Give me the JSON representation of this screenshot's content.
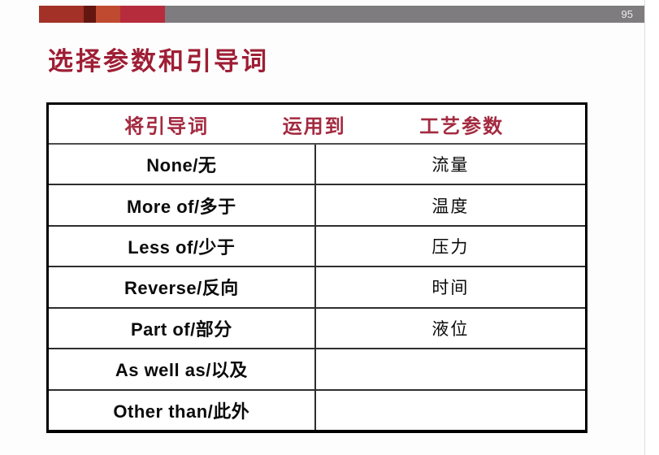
{
  "page": {
    "number": "95"
  },
  "title": "选择参数和引导词",
  "table": {
    "header": {
      "col1": "将引导词",
      "col2": "运用到",
      "col3": "工艺参数"
    },
    "rows": [
      {
        "guideword": "None/无",
        "parameter": "流量"
      },
      {
        "guideword": "More of/多于",
        "parameter": "温度"
      },
      {
        "guideword": "Less of/少于",
        "parameter": "压力"
      },
      {
        "guideword": "Reverse/反向",
        "parameter": "时间"
      },
      {
        "guideword": "Part of/部分",
        "parameter": "液位"
      },
      {
        "guideword": "As well as/以及",
        "parameter": ""
      },
      {
        "guideword": "Other than/此外",
        "parameter": ""
      }
    ]
  },
  "colors": {
    "bar_seg1": "#a33127",
    "bar_seg2": "#641710",
    "bar_seg3": "#c04a2f",
    "bar_seg4": "#b72c3c",
    "bar_gray": "#7f7c7f",
    "title_text": "#9e1e35",
    "header_text": "#a32a40"
  }
}
